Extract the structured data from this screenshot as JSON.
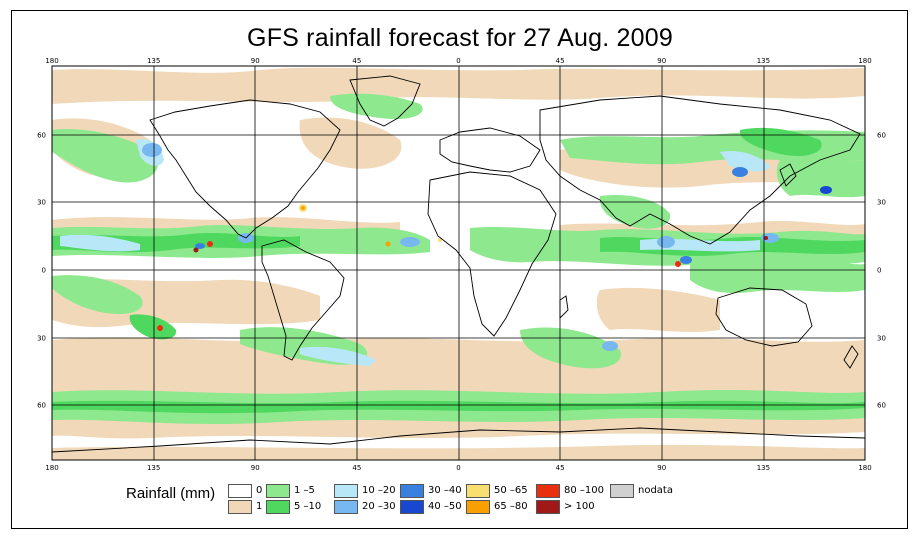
{
  "title": "GFS rainfall forecast for 27 Aug. 2009",
  "axes": {
    "lon_ticks": [
      "180",
      "135",
      "90",
      "45",
      "0",
      "45",
      "90",
      "135",
      "180"
    ],
    "lat_ticks": [
      "60",
      "30",
      "0",
      "30",
      "60"
    ]
  },
  "legend": {
    "title": "Rainfall (mm)",
    "items": [
      {
        "label": "0",
        "color": "#ffffff"
      },
      {
        "label": "1",
        "color": "#f0d8b8"
      },
      {
        "label": "1 –5",
        "color": "#8ee88e"
      },
      {
        "label": "5 –10",
        "color": "#4fd860"
      },
      {
        "label": "10 –20",
        "color": "#b8e8f8"
      },
      {
        "label": "20 –30",
        "color": "#78b8f0"
      },
      {
        "label": "30 –40",
        "color": "#3a80e0"
      },
      {
        "label": "40 –50",
        "color": "#1848d0"
      },
      {
        "label": "50 –65",
        "color": "#f8e070"
      },
      {
        "label": "65 –80",
        "color": "#f8a000"
      },
      {
        "label": "80 –100",
        "color": "#e83010"
      },
      {
        "label": "> 100",
        "color": "#a01818"
      },
      {
        "label": "nodata",
        "color": "#d0d0d0"
      }
    ]
  }
}
